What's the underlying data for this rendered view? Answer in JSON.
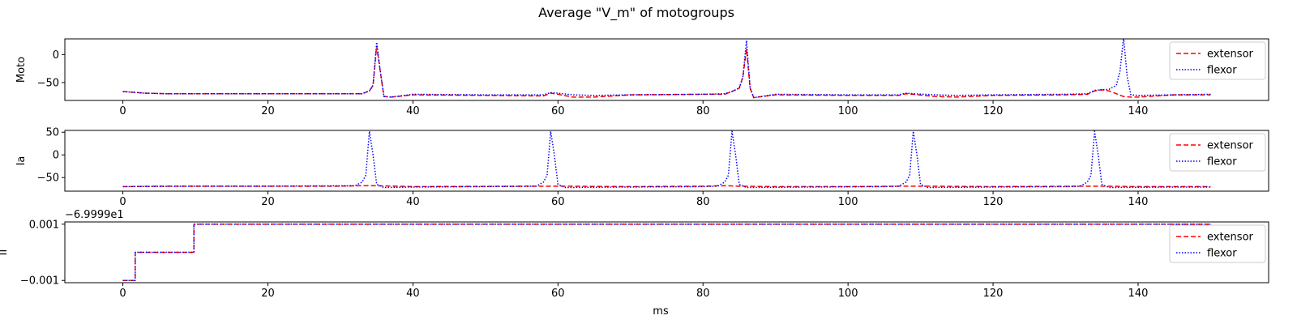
{
  "figure": {
    "title": "Average \"V_m\" of motogroups",
    "xlabel": "ms"
  },
  "colors": {
    "extensor": "#ff0000",
    "flexor": "#0000ff"
  },
  "chart_data": [
    {
      "type": "line",
      "ylabel": "Moto",
      "xlim": [
        -8,
        158
      ],
      "ylim": [
        -82,
        28
      ],
      "xticks": [
        0,
        20,
        40,
        60,
        80,
        100,
        120,
        140
      ],
      "xtick_labels": [
        "0",
        "20",
        "40",
        "60",
        "80",
        "100",
        "120",
        "140"
      ],
      "yticks": [
        0,
        -50
      ],
      "ytick_labels": [
        "0",
        "−50"
      ],
      "legend": "top-right",
      "series": [
        {
          "name": "extensor",
          "style": "dashed",
          "x": [
            0,
            3,
            6,
            10,
            20,
            33,
            34,
            34.5,
            35,
            35.5,
            36,
            37,
            40,
            50,
            58,
            59,
            60,
            62,
            65,
            70,
            80,
            83,
            84,
            85,
            85.5,
            86,
            86.5,
            87,
            90,
            100,
            107,
            108,
            109,
            112,
            115,
            120,
            130,
            133,
            134,
            135,
            136,
            137,
            138,
            139,
            140,
            145,
            150
          ],
          "y": [
            -66,
            -69,
            -70,
            -70,
            -70,
            -70,
            -65,
            -55,
            15,
            -30,
            -75,
            -76,
            -72,
            -73,
            -74,
            -69,
            -71,
            -76,
            -76,
            -72,
            -71,
            -71,
            -66,
            -60,
            -40,
            10,
            -60,
            -77,
            -72,
            -73,
            -73,
            -70,
            -71,
            -75,
            -76,
            -73,
            -72,
            -71,
            -65,
            -63,
            -65,
            -70,
            -75,
            -76,
            -76,
            -72,
            -72
          ]
        },
        {
          "name": "flexor",
          "style": "dotted",
          "x": [
            0,
            3,
            6,
            10,
            20,
            33,
            34,
            34.5,
            35,
            35.5,
            36,
            37,
            40,
            50,
            58,
            59,
            60,
            62,
            65,
            70,
            80,
            83,
            84,
            85,
            85.5,
            86,
            86.5,
            87,
            90,
            100,
            107,
            108,
            109,
            112,
            115,
            120,
            130,
            133,
            134,
            135,
            136,
            137,
            137.5,
            138,
            138.5,
            139,
            140,
            145,
            150
          ],
          "y": [
            -66,
            -69,
            -70,
            -70,
            -70,
            -70,
            -65,
            -55,
            22,
            -30,
            -75,
            -76,
            -71,
            -72,
            -72,
            -68,
            -69,
            -72,
            -73,
            -72,
            -71,
            -70,
            -66,
            -60,
            -40,
            25,
            -60,
            -77,
            -71,
            -72,
            -72,
            -69,
            -70,
            -72,
            -73,
            -72,
            -71,
            -70,
            -64,
            -63,
            -62,
            -55,
            -30,
            30,
            -40,
            -72,
            -73,
            -72,
            -71
          ]
        }
      ]
    },
    {
      "type": "line",
      "ylabel": "Ia",
      "xlim": [
        -8,
        158
      ],
      "ylim": [
        -80,
        54
      ],
      "xticks": [
        0,
        20,
        40,
        60,
        80,
        100,
        120,
        140
      ],
      "xtick_labels": [
        "0",
        "20",
        "40",
        "60",
        "80",
        "100",
        "120",
        "140"
      ],
      "yticks": [
        50,
        0,
        -50
      ],
      "ytick_labels": [
        "50",
        "0",
        "−50"
      ],
      "legend": "top-right",
      "series": [
        {
          "name": "extensor",
          "style": "dashed",
          "x": [
            0,
            5,
            10,
            20,
            30,
            33,
            35,
            40,
            58,
            60,
            70,
            80,
            83,
            85,
            90,
            100,
            108,
            110,
            120,
            133,
            135,
            140,
            150
          ],
          "y": [
            -70,
            -69,
            -69,
            -69,
            -69,
            -68,
            -68,
            -70,
            -69,
            -69,
            -70,
            -69,
            -68,
            -69,
            -70,
            -70,
            -69,
            -69,
            -70,
            -69,
            -69,
            -70,
            -70
          ]
        },
        {
          "name": "flexor",
          "style": "dotted",
          "x": [
            0,
            10,
            20,
            32,
            33,
            33.5,
            34,
            34.5,
            35,
            36,
            40,
            50,
            57,
            58,
            58.5,
            59,
            59.5,
            60,
            61,
            70,
            80,
            82,
            83,
            83.5,
            84,
            84.5,
            85,
            86,
            95,
            105,
            107,
            108,
            108.5,
            109,
            109.5,
            110,
            111,
            120,
            131,
            132,
            133,
            133.5,
            134,
            134.5,
            135,
            136,
            145,
            150
          ],
          "y": [
            -70,
            -69,
            -69,
            -68,
            -60,
            -45,
            52,
            0,
            -65,
            -72,
            -71,
            -70,
            -69,
            -60,
            -45,
            52,
            0,
            -65,
            -72,
            -71,
            -70,
            -69,
            -60,
            -45,
            52,
            0,
            -65,
            -72,
            -71,
            -70,
            -69,
            -60,
            -45,
            52,
            0,
            -65,
            -72,
            -71,
            -70,
            -69,
            -60,
            -45,
            52,
            0,
            -65,
            -72,
            -71,
            -71
          ]
        }
      ]
    },
    {
      "type": "line",
      "ylabel": "II",
      "offset_label": "−6.9999e1",
      "xlim": [
        -8,
        158
      ],
      "ylim": [
        -0.00108,
        0.00108
      ],
      "xticks": [
        0,
        20,
        40,
        60,
        80,
        100,
        120,
        140
      ],
      "xtick_labels": [
        "0",
        "20",
        "40",
        "60",
        "80",
        "100",
        "120",
        "140"
      ],
      "yticks": [
        0.001,
        -0.001
      ],
      "ytick_labels": [
        "0.001",
        "−0.001"
      ],
      "legend": "top-right",
      "series": [
        {
          "name": "extensor",
          "style": "dashed",
          "x": [
            0,
            1.7,
            1.7,
            9.8,
            9.8,
            150
          ],
          "y": [
            -0.001,
            -0.001,
            0,
            0,
            0.001,
            0.001
          ]
        },
        {
          "name": "flexor",
          "style": "dotted",
          "x": [
            0,
            1.7,
            1.7,
            9.8,
            9.8,
            150
          ],
          "y": [
            -0.001,
            -0.001,
            0,
            0,
            0.001,
            0.001
          ]
        }
      ]
    }
  ]
}
